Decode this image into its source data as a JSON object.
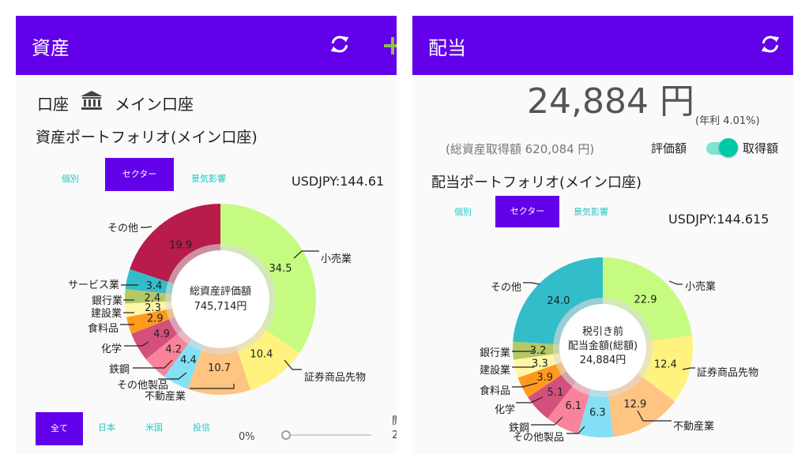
{
  "colors": {
    "primary": "#6200ea",
    "accent": "#26c6c6",
    "toggle_thumb": "#00c9a7",
    "toggle_track": "#80e4d3",
    "lime": "#c6fb82",
    "yellow": "#fff27f",
    "peach": "#ffc382",
    "cyan": "#84e0f5",
    "pink": "#f9839b",
    "magenta": "#d34f7c",
    "orange": "#ff9a1c",
    "pale_yellow": "#fff6a8",
    "olive": "#b5c866",
    "teal": "#33bdc9",
    "crimson": "#b71c4a"
  },
  "left": {
    "title": "資産",
    "account_label": "口座",
    "account_name": "メイン口座",
    "portfolio_title": "資産ポートフォリオ(メイン口座)",
    "tabs": [
      {
        "label": "個別",
        "active": false
      },
      {
        "label": "セクター",
        "active": true
      },
      {
        "label": "景気影響",
        "active": false
      }
    ],
    "usdjpy": "USDJPY:144.61",
    "center_line1": "総資産評価額",
    "center_line2": "745,714円",
    "bottom_tabs": [
      {
        "label": "全て",
        "active": true
      },
      {
        "label": "日本",
        "active": false
      },
      {
        "label": "米国",
        "active": false
      },
      {
        "label": "投信",
        "active": false
      }
    ],
    "slider_value": "0%",
    "cut_text_1": "閲",
    "cut_text_2": "2"
  },
  "right": {
    "title": "配当",
    "total": "24,884 円",
    "annual_rate": "(年利 4.01%)",
    "acquisition_total": "(総資産取得額 620,084 円)",
    "toggle_left_label": "評価額",
    "toggle_right_label": "取得額",
    "toggle_on": true,
    "portfolio_title": "配当ポートフォリオ(メイン口座)",
    "tabs": [
      {
        "label": "個別",
        "active": false
      },
      {
        "label": "セクター",
        "active": true
      },
      {
        "label": "景気影響",
        "active": false
      }
    ],
    "usdjpy": "USDJPY:144.615",
    "center_line1": "税引き前",
    "center_line2": "配当金額(総額)",
    "center_line3": "24,884円"
  },
  "chart_data": [
    {
      "type": "pie",
      "categories": [
        "小売業",
        "証券商品先物",
        "不動産業",
        "その他製品",
        "鉄鋼",
        "化学",
        "食料品",
        "建設業",
        "銀行業",
        "サービス業",
        "その他"
      ],
      "values": [
        34.5,
        10.4,
        10.7,
        4.4,
        4.2,
        4.9,
        2.9,
        2.3,
        2.4,
        3.4,
        19.9
      ],
      "colors": [
        "#c6fb82",
        "#fff27f",
        "#ffc382",
        "#84e0f5",
        "#f9839b",
        "#d34f7c",
        "#ff9a1c",
        "#fff6a8",
        "#b5c866",
        "#33bdc9",
        "#b71c4a"
      ]
    },
    {
      "type": "pie",
      "categories": [
        "小売業",
        "証券商品先物",
        "不動産業",
        "その他製品",
        "鉄鋼",
        "化学",
        "食料品",
        "建設業",
        "銀行業",
        "その他"
      ],
      "values": [
        22.9,
        12.4,
        12.9,
        6.3,
        6.1,
        5.1,
        3.9,
        3.3,
        3.2,
        24.0
      ],
      "colors": [
        "#c6fb82",
        "#fff27f",
        "#ffc382",
        "#84e0f5",
        "#f9839b",
        "#d34f7c",
        "#ff9a1c",
        "#fff6a8",
        "#b5c866",
        "#33bdc9"
      ]
    }
  ]
}
